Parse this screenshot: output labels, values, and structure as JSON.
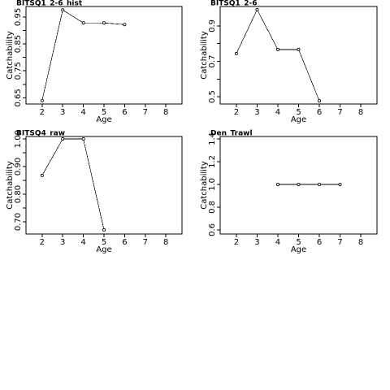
{
  "chart_data": [
    {
      "type": "line",
      "title": "BITSQ1_2-6_hist",
      "x_label": "Age",
      "y_label": "Catchability",
      "x": [
        2,
        3,
        4,
        5,
        6
      ],
      "values": [
        0.64,
        0.976,
        0.928,
        0.928,
        0.922
      ],
      "color": "#000000",
      "xlim": [
        1.22,
        8.78
      ],
      "xticks": [
        2,
        3,
        4,
        5,
        6,
        7,
        8
      ],
      "ylim": [
        0.627,
        0.989
      ],
      "yticks": [
        0.65,
        0.75,
        0.85,
        0.95
      ],
      "minor_yticks": [
        0.7,
        0.8,
        0.9
      ]
    },
    {
      "type": "line",
      "title": "BITSQ1_2-6",
      "x_label": "Age",
      "y_label": "Catchability",
      "x": [
        2,
        3,
        4,
        5,
        6
      ],
      "values": [
        0.744,
        0.992,
        0.767,
        0.767,
        0.477
      ],
      "color": "#000000",
      "xlim": [
        1.22,
        8.78
      ],
      "xticks": [
        2,
        3,
        4,
        5,
        6,
        7,
        8
      ],
      "ylim": [
        0.459,
        1.01
      ],
      "yticks": [
        0.5,
        0.7,
        0.9
      ],
      "minor_yticks": [
        0.6,
        0.8
      ]
    },
    {
      "type": "line",
      "title": "BITSQ4_raw",
      "x_label": "Age",
      "y_label": "Catchability",
      "x": [
        2,
        3,
        4,
        5
      ],
      "values": [
        0.868,
        1.0,
        1.0,
        0.671
      ],
      "color": "#000000",
      "xlim": [
        1.22,
        8.78
      ],
      "xticks": [
        2,
        3,
        4,
        5,
        6,
        7,
        8
      ],
      "ylim": [
        0.656,
        1.009
      ],
      "yticks": [
        {
          "value": 0.7,
          "label": "0.70"
        },
        {
          "value": 0.8,
          "label": "0.80"
        },
        {
          "value": 0.9,
          "label": "0.90"
        },
        {
          "value": 1.0,
          "label": "1.00"
        }
      ],
      "minor_yticks": [
        0.75,
        0.85,
        0.95
      ]
    },
    {
      "type": "line",
      "title": "Den_Trawl",
      "x_label": "Age",
      "y_label": "Catchability",
      "x": [
        4,
        5,
        6,
        7
      ],
      "values": [
        1.0,
        1.0,
        1.0,
        1.0
      ],
      "color": "#000000",
      "xlim": [
        1.22,
        8.78
      ],
      "xticks": [
        2,
        3,
        4,
        5,
        6,
        7,
        8
      ],
      "ylim": [
        0.564,
        1.421
      ],
      "yticks": [
        0.6,
        0.8,
        {
          "value": 1.0,
          "label": "1.0"
        },
        1.2,
        1.4
      ],
      "minor_yticks": []
    }
  ]
}
